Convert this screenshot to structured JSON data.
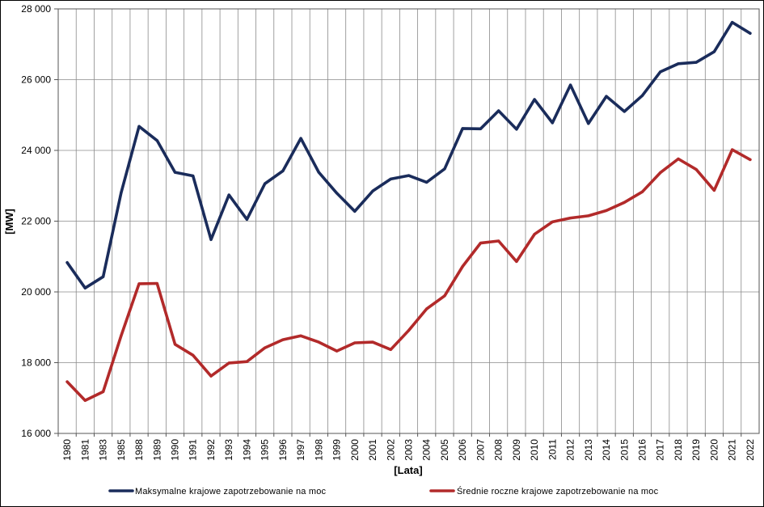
{
  "chart_data": {
    "type": "line",
    "xlabel": "[Lata]",
    "ylabel": "[MW]",
    "ylim": [
      16000,
      28000
    ],
    "y_ticks": [
      16000,
      18000,
      20000,
      22000,
      24000,
      26000,
      28000
    ],
    "y_tick_labels": [
      "16 000",
      "18 000",
      "20 000",
      "22 000",
      "24 000",
      "26 000",
      "28 000"
    ],
    "grid": true,
    "legend_position": "bottom",
    "categories": [
      "1980",
      "1981",
      "1983",
      "1985",
      "1988",
      "1989",
      "1990",
      "1991",
      "1992",
      "1993",
      "1994",
      "1995",
      "1996",
      "1997",
      "1998",
      "1999",
      "2000",
      "2001",
      "2002",
      "2003",
      "2004",
      "2005",
      "2006",
      "2007",
      "2008",
      "2009",
      "2010",
      "2011",
      "2012",
      "2013",
      "2014",
      "2015",
      "2016",
      "2017",
      "2018",
      "2019",
      "2020",
      "2021",
      "2022"
    ],
    "series": [
      {
        "name": "Maksymalne krajowe zapotrzebowanie na moc",
        "color": "#1a2c5b",
        "values": [
          20830,
          20110,
          20430,
          22800,
          24680,
          24280,
          23380,
          23280,
          21480,
          22740,
          22050,
          23060,
          23420,
          24340,
          23380,
          22790,
          22280,
          22850,
          23190,
          23290,
          23100,
          23480,
          24620,
          24610,
          25120,
          24600,
          25440,
          24780,
          25850,
          24760,
          25530,
          25100,
          25550,
          26220,
          26450,
          26490,
          26790,
          27620,
          27310
        ]
      },
      {
        "name": "Średnie roczne krajowe zapotrzebowanie na moc",
        "color": "#b22a2a",
        "values": [
          17460,
          16930,
          17180,
          18760,
          20230,
          20240,
          18520,
          18210,
          17620,
          17990,
          18030,
          18420,
          18650,
          18760,
          18580,
          18330,
          18560,
          18580,
          18370,
          18910,
          19520,
          19890,
          20720,
          21380,
          21440,
          20860,
          21630,
          21980,
          22090,
          22150,
          22300,
          22530,
          22830,
          23370,
          23760,
          23460,
          22870,
          24020,
          23740
        ]
      }
    ]
  }
}
